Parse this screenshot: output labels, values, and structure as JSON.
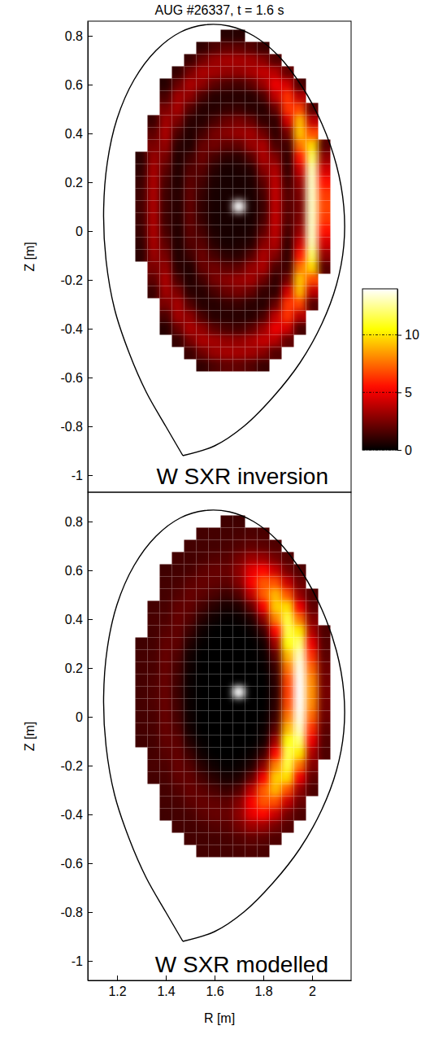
{
  "chart_data": [
    {
      "type": "heatmap",
      "title": "AUG #26337, t = 1.6 s",
      "annotation": "W SXR inversion",
      "ylabel": "Z [m]",
      "xlim": [
        1.08,
        2.16
      ],
      "ylim": [
        -1.07,
        0.86
      ],
      "yticks": [
        0.8,
        0.6,
        0.4,
        0.2,
        0,
        -0.2,
        -0.4,
        -0.6,
        -0.8,
        -1
      ],
      "tick_labels": "y",
      "x": [
        1.3,
        1.35,
        1.4,
        1.45,
        1.5,
        1.55,
        1.6,
        1.65,
        1.7,
        1.75,
        1.8,
        1.85,
        1.9,
        1.95,
        2,
        2.05
      ],
      "y": [
        0.8,
        0.75,
        0.7,
        0.65,
        0.6,
        0.55,
        0.5,
        0.45,
        0.4,
        0.35,
        0.3,
        0.25,
        0.2,
        0.15,
        0.1,
        0.05,
        0,
        -0.05,
        -0.1,
        -0.15,
        -0.2,
        -0.25,
        -0.3,
        -0.35,
        -0.4,
        -0.45,
        -0.5,
        -0.55
      ],
      "z": [
        [
          null,
          null,
          null,
          null,
          null,
          null,
          null,
          0.8,
          0.8,
          null,
          null,
          null,
          null,
          null,
          null,
          null
        ],
        [
          null,
          null,
          null,
          null,
          null,
          1.0,
          1.6,
          2.0,
          2.0,
          1.7,
          1.2,
          null,
          null,
          null,
          null,
          null
        ],
        [
          null,
          null,
          null,
          null,
          1.2,
          2.3,
          3.1,
          3.4,
          3.4,
          3.3,
          2.8,
          1.7,
          null,
          null,
          null,
          null
        ],
        [
          null,
          null,
          null,
          1.1,
          2.5,
          3.5,
          3.3,
          3.0,
          3.0,
          3.4,
          4.0,
          3.7,
          2.0,
          null,
          null,
          null
        ],
        [
          null,
          null,
          0.8,
          2.2,
          3.5,
          2.9,
          1.9,
          1.5,
          1.4,
          1.9,
          3.1,
          4.9,
          4.3,
          1.5,
          null,
          null
        ],
        [
          null,
          null,
          1.5,
          3.3,
          2.9,
          1.5,
          0.8,
          0.8,
          0.8,
          0.8,
          1.5,
          3.9,
          6.3,
          3.7,
          null,
          null
        ],
        [
          null,
          null,
          2.5,
          3.4,
          1.7,
          0.8,
          0.8,
          1.1,
          1.2,
          0.9,
          0.8,
          2.1,
          6.3,
          6.7,
          1.8,
          null
        ],
        [
          null,
          1.2,
          3.3,
          2.5,
          0.9,
          0.8,
          1.5,
          2.2,
          2.5,
          2.1,
          1.1,
          1.0,
          4.3,
          9.0,
          3.9,
          null
        ],
        [
          null,
          1.9,
          3.5,
          1.5,
          0.7,
          1.4,
          2.4,
          2.8,
          3.1,
          3.3,
          2.3,
          1.0,
          2.4,
          9.2,
          6.8,
          null
        ],
        [
          null,
          2.5,
          3.0,
          0.9,
          0.7,
          2.1,
          2.3,
          1.9,
          2.0,
          3.0,
          3.5,
          1.6,
          1.3,
          7.6,
          9.7,
          1.8
        ],
        [
          0.9,
          3.1,
          2.4,
          0.7,
          1.3,
          2.2,
          1.4,
          0.9,
          0.9,
          1.7,
          3.5,
          2.7,
          1.0,
          5.7,
          11.9,
          3.0
        ],
        [
          1.0,
          3.4,
          1.9,
          0.7,
          1.7,
          1.8,
          0.8,
          0.5,
          0.6,
          0.8,
          2.7,
          3.6,
          1.1,
          4.1,
          13.0,
          4.3
        ],
        [
          1.2,
          3.5,
          1.5,
          0.7,
          1.9,
          1.4,
          0.6,
          0.5,
          0.5,
          0.6,
          1.9,
          3.9,
          1.4,
          3.1,
          13.2,
          5.6
        ],
        [
          1.3,
          3.5,
          1.3,
          0.8,
          2.0,
          1.1,
          0.5,
          0.5,
          0.5,
          0.5,
          1.4,
          4.0,
          1.7,
          2.6,
          13.2,
          6.4
        ],
        [
          1.4,
          3.5,
          1.3,
          0.8,
          2.0,
          1.0,
          0.5,
          0.5,
          14,
          0.5,
          1.2,
          3.9,
          1.8,
          2.4,
          13.2,
          6.7
        ],
        [
          1.3,
          3.5,
          1.3,
          0.8,
          2.0,
          1.1,
          0.5,
          0.5,
          0.5,
          0.5,
          1.4,
          4.0,
          1.7,
          2.6,
          13.2,
          6.4
        ],
        [
          1.2,
          3.5,
          1.5,
          0.7,
          1.9,
          1.4,
          0.6,
          0.5,
          0.5,
          0.6,
          1.9,
          3.9,
          1.4,
          3.1,
          13.2,
          5.6
        ],
        [
          1.0,
          3.4,
          1.9,
          0.7,
          1.7,
          1.8,
          0.8,
          0.5,
          0.6,
          0.8,
          2.7,
          3.6,
          1.1,
          4.1,
          13.0,
          4.3
        ],
        [
          0.9,
          3.1,
          2.4,
          0.7,
          1.3,
          2.2,
          1.4,
          0.9,
          0.9,
          1.7,
          3.5,
          2.7,
          1.0,
          5.7,
          11.9,
          3.0
        ],
        [
          null,
          2.5,
          3.0,
          0.9,
          0.7,
          2.1,
          2.3,
          1.9,
          2.0,
          3.0,
          3.5,
          1.6,
          1.3,
          7.6,
          9.7,
          1.8
        ],
        [
          null,
          1.9,
          3.5,
          1.5,
          0.7,
          1.4,
          2.4,
          2.8,
          3.1,
          3.3,
          2.3,
          1.0,
          2.4,
          9.2,
          6.8,
          null
        ],
        [
          null,
          1.2,
          3.3,
          2.5,
          0.9,
          0.8,
          1.5,
          2.2,
          2.5,
          2.1,
          1.1,
          1.0,
          4.3,
          9.0,
          3.9,
          null
        ],
        [
          null,
          null,
          2.5,
          3.4,
          1.7,
          0.8,
          0.8,
          1.1,
          1.2,
          0.9,
          0.8,
          2.1,
          6.3,
          6.7,
          1.8,
          null
        ],
        [
          null,
          null,
          1.5,
          3.3,
          2.9,
          1.5,
          0.8,
          0.8,
          0.8,
          0.8,
          1.5,
          3.9,
          6.3,
          3.7,
          null,
          null
        ],
        [
          null,
          null,
          0.8,
          2.2,
          3.5,
          2.9,
          1.9,
          1.5,
          1.4,
          1.9,
          3.1,
          4.9,
          4.3,
          1.5,
          null,
          null
        ],
        [
          null,
          null,
          null,
          1.1,
          2.5,
          3.5,
          3.3,
          3.0,
          3.0,
          3.4,
          4.0,
          3.7,
          2.0,
          null,
          null,
          null
        ],
        [
          null,
          null,
          null,
          null,
          1.2,
          2.3,
          3.1,
          3.4,
          3.4,
          3.3,
          2.8,
          1.7,
          null,
          null,
          null,
          null
        ],
        [
          null,
          null,
          null,
          null,
          null,
          1.0,
          1.6,
          2.0,
          2.0,
          1.7,
          1.2,
          null,
          null,
          null,
          null,
          null
        ]
      ],
      "separatrix": {
        "R": [
          1.47,
          1.4,
          1.32,
          1.25,
          1.19,
          1.155,
          1.145,
          1.16,
          1.2,
          1.27,
          1.36,
          1.46,
          1.56,
          1.66,
          1.76,
          1.86,
          1.96,
          2.04,
          2.1,
          2.13,
          2.13,
          2.1,
          2.04,
          1.95,
          1.84,
          1.72,
          1.6,
          1.47
        ],
        "Z": [
          -0.92,
          -0.8,
          -0.66,
          -0.5,
          -0.32,
          -0.12,
          0.08,
          0.28,
          0.46,
          0.62,
          0.74,
          0.815,
          0.845,
          0.84,
          0.8,
          0.72,
          0.59,
          0.44,
          0.27,
          0.1,
          -0.06,
          -0.22,
          -0.38,
          -0.54,
          -0.68,
          -0.8,
          -0.88,
          -0.92
        ]
      },
      "colorbar": {
        "range": [
          0,
          14
        ],
        "ticks": [
          0,
          5,
          10
        ]
      }
    },
    {
      "type": "heatmap",
      "annotation": "W SXR modelled",
      "xlabel": "R [m]",
      "ylabel": "Z [m]",
      "xlim": [
        1.08,
        2.16
      ],
      "ylim": [
        -1.08,
        0.92
      ],
      "xticks": [
        1.2,
        1.4,
        1.6,
        1.8,
        2
      ],
      "yticks": [
        0.8,
        0.6,
        0.4,
        0.2,
        0,
        -0.2,
        -0.4,
        -0.6,
        -0.8,
        -1
      ],
      "x": [
        1.3,
        1.35,
        1.4,
        1.45,
        1.5,
        1.55,
        1.6,
        1.65,
        1.7,
        1.75,
        1.8,
        1.85,
        1.9,
        1.95,
        2,
        2.05
      ],
      "y": [
        0.8,
        0.75,
        0.7,
        0.65,
        0.6,
        0.55,
        0.5,
        0.45,
        0.4,
        0.35,
        0.3,
        0.25,
        0.2,
        0.15,
        0.1,
        0.05,
        0,
        -0.05,
        -0.1,
        -0.15,
        -0.2,
        -0.25,
        -0.3,
        -0.35,
        -0.4,
        -0.45,
        -0.5,
        -0.55
      ],
      "z": [
        [
          null,
          null,
          null,
          null,
          null,
          null,
          null,
          1.3,
          1.3,
          null,
          null,
          null,
          null,
          null,
          null,
          null
        ],
        [
          null,
          null,
          null,
          null,
          null,
          1.4,
          1.4,
          1.4,
          1.5,
          1.6,
          1.5,
          null,
          null,
          null,
          null,
          null
        ],
        [
          null,
          null,
          null,
          null,
          1.4,
          1.4,
          1.4,
          1.5,
          1.7,
          2.0,
          1.9,
          1.6,
          null,
          null,
          null,
          null
        ],
        [
          null,
          null,
          null,
          1.4,
          1.4,
          1.5,
          1.7,
          1.8,
          2.4,
          3.2,
          3.2,
          2.4,
          1.7,
          null,
          null,
          null
        ],
        [
          null,
          null,
          1.3,
          1.4,
          1.5,
          1.9,
          2.1,
          2.1,
          2.9,
          4.7,
          5.4,
          4.1,
          2.4,
          1.6,
          null,
          null
        ],
        [
          null,
          null,
          1.4,
          1.5,
          1.9,
          2.1,
          2.0,
          1.9,
          2.7,
          5.1,
          7.0,
          6.9,
          4.1,
          2.2,
          null,
          null
        ],
        [
          null,
          null,
          1.4,
          1.7,
          2.1,
          1.9,
          1.5,
          1.2,
          1.7,
          3.9,
          7.1,
          9.0,
          7.0,
          3.1,
          1.6,
          null
        ],
        [
          null,
          1.4,
          1.5,
          2.0,
          2.0,
          1.4,
          0.8,
          0.5,
          0.7,
          2.0,
          5.1,
          9.4,
          9.8,
          5.0,
          2.0,
          null
        ],
        [
          null,
          1.5,
          1.6,
          2.1,
          1.7,
          0.8,
          0.3,
          0.1,
          0.2,
          0.7,
          2.8,
          7.9,
          11.4,
          7.6,
          2.7,
          null
        ],
        [
          null,
          1.4,
          1.8,
          2.0,
          1.2,
          0.3,
          0,
          0,
          0,
          0.2,
          1.2,
          5.4,
          11.6,
          10.0,
          3.6,
          1.6
        ],
        [
          1.3,
          1.4,
          2.0,
          1.9,
          0.7,
          0.1,
          0,
          0,
          0,
          0,
          0.4,
          3.3,
          10.7,
          12.1,
          4.9,
          1.7
        ],
        [
          1.4,
          1.5,
          2.1,
          1.6,
          0.4,
          0,
          0,
          0,
          0,
          0,
          0.2,
          1.9,
          9.0,
          13.2,
          6.2,
          1.9
        ],
        [
          1.4,
          1.5,
          2.1,
          1.4,
          0.3,
          0,
          0,
          0,
          0,
          0,
          0.1,
          1.2,
          7.7,
          13.7,
          7.3,
          2.2
        ],
        [
          1.4,
          1.6,
          2.1,
          1.3,
          0.2,
          0,
          0,
          0,
          0,
          0,
          0,
          0.9,
          6.8,
          13.9,
          8.0,
          2.3
        ],
        [
          1.4,
          1.6,
          2.1,
          1.2,
          0.2,
          0,
          0,
          0,
          14,
          0,
          0,
          0.8,
          6.5,
          14.0,
          8.2,
          2.4
        ],
        [
          1.4,
          1.6,
          2.1,
          1.3,
          0.2,
          0,
          0,
          0,
          0,
          0,
          0,
          0.9,
          6.8,
          13.9,
          8.0,
          2.3
        ],
        [
          1.4,
          1.5,
          2.1,
          1.4,
          0.3,
          0,
          0,
          0,
          0,
          0,
          0.1,
          1.2,
          7.7,
          13.7,
          7.3,
          2.2
        ],
        [
          1.4,
          1.5,
          2.1,
          1.6,
          0.4,
          0,
          0,
          0,
          0,
          0,
          0.2,
          1.9,
          9.0,
          13.2,
          6.2,
          1.9
        ],
        [
          1.3,
          1.4,
          2.0,
          1.9,
          0.7,
          0.1,
          0,
          0,
          0,
          0,
          0.4,
          3.3,
          10.7,
          12.1,
          4.9,
          1.7
        ],
        [
          null,
          1.4,
          1.8,
          2.0,
          1.2,
          0.3,
          0,
          0,
          0,
          0.2,
          1.2,
          5.4,
          11.6,
          10.0,
          3.6,
          1.6
        ],
        [
          null,
          1.5,
          1.6,
          2.1,
          1.7,
          0.8,
          0.3,
          0.1,
          0.2,
          0.7,
          2.8,
          7.9,
          11.4,
          7.6,
          2.7,
          null
        ],
        [
          null,
          1.4,
          1.5,
          2.0,
          2.0,
          1.4,
          0.8,
          0.5,
          0.7,
          2.0,
          5.1,
          9.4,
          9.8,
          5.0,
          2.0,
          null
        ],
        [
          null,
          null,
          1.4,
          1.7,
          2.1,
          1.9,
          1.5,
          1.2,
          1.7,
          3.9,
          7.1,
          9.0,
          7.0,
          3.1,
          1.6,
          null
        ],
        [
          null,
          null,
          1.4,
          1.5,
          1.9,
          2.1,
          2.0,
          1.9,
          2.7,
          5.1,
          7.0,
          6.9,
          4.1,
          2.2,
          null,
          null
        ],
        [
          null,
          null,
          1.3,
          1.4,
          1.5,
          1.9,
          2.1,
          2.1,
          2.9,
          4.7,
          5.4,
          4.1,
          2.4,
          1.6,
          null,
          null
        ],
        [
          null,
          null,
          null,
          1.4,
          1.4,
          1.5,
          1.7,
          1.8,
          2.4,
          3.2,
          3.2,
          2.4,
          1.7,
          null,
          null,
          null
        ],
        [
          null,
          null,
          null,
          null,
          1.4,
          1.4,
          1.4,
          1.5,
          1.7,
          2.0,
          1.9,
          1.6,
          null,
          null,
          null,
          null
        ],
        [
          null,
          null,
          null,
          null,
          null,
          1.4,
          1.4,
          1.4,
          1.5,
          1.6,
          1.5,
          null,
          null,
          null,
          null,
          null
        ]
      ],
      "separatrix": {
        "R": [
          1.47,
          1.4,
          1.32,
          1.25,
          1.19,
          1.155,
          1.145,
          1.16,
          1.2,
          1.27,
          1.36,
          1.46,
          1.56,
          1.66,
          1.76,
          1.86,
          1.96,
          2.04,
          2.1,
          2.13,
          2.13,
          2.1,
          2.04,
          1.95,
          1.84,
          1.72,
          1.6,
          1.47
        ],
        "Z": [
          -0.92,
          -0.8,
          -0.66,
          -0.5,
          -0.32,
          -0.12,
          0.08,
          0.28,
          0.46,
          0.62,
          0.74,
          0.815,
          0.845,
          0.84,
          0.8,
          0.72,
          0.59,
          0.44,
          0.27,
          0.1,
          -0.06,
          -0.22,
          -0.38,
          -0.54,
          -0.68,
          -0.8,
          -0.88,
          -0.92
        ]
      }
    }
  ]
}
